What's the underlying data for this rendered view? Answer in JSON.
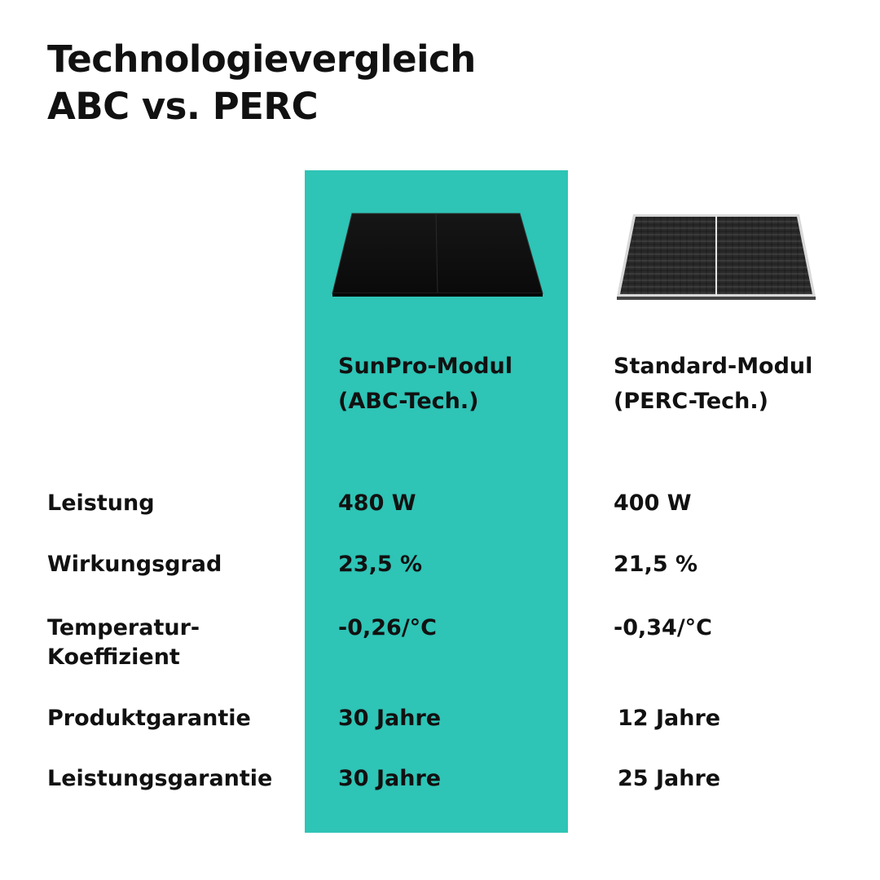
{
  "title": {
    "line1": "Technologievergleich",
    "line2": "ABC vs. PERC"
  },
  "columns": {
    "abc": {
      "name_line1": "SunPro-Modul",
      "name_line2": "(ABC-Tech.)",
      "accent_color": "#2ec4b6",
      "image_icon": "black-solar-panel-icon"
    },
    "perc": {
      "name_line1": "Standard-Modul",
      "name_line2": "(PERC-Tech.)",
      "image_icon": "grid-solar-panel-icon"
    }
  },
  "rows": [
    {
      "label": "Leistung",
      "abc": "480 W",
      "perc": "400 W"
    },
    {
      "label": "Wirkungsgrad",
      "abc": "23,5 %",
      "perc": "21,5 %"
    },
    {
      "label_line1": "Temperatur-",
      "label_line2": "Koeffizient",
      "abc": "-0,26/°C",
      "perc": "-0,34/°C"
    },
    {
      "label": "Produktgarantie",
      "abc": "30 Jahre",
      "perc": "12 Jahre"
    },
    {
      "label": "Leistungsgarantie",
      "abc": "30 Jahre",
      "perc": "25 Jahre"
    }
  ]
}
